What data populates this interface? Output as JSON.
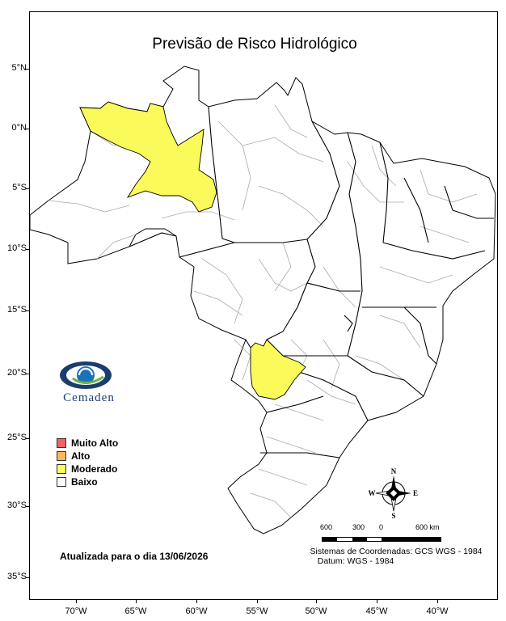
{
  "title": "Previsão de Risco Hidrológico",
  "axes": {
    "lat_labels": [
      "5°N",
      "0°N",
      "5°S",
      "10°S",
      "15°S",
      "20°S",
      "25°S",
      "30°S",
      "35°S"
    ],
    "lon_labels": [
      "70°W",
      "65°W",
      "60°W",
      "55°W",
      "50°W",
      "45°W",
      "40°W"
    ]
  },
  "logo": {
    "name": "Cemaden"
  },
  "legend": {
    "items": [
      {
        "label": "Muito Alto",
        "color": "#f26060"
      },
      {
        "label": "Alto",
        "color": "#f9b85b"
      },
      {
        "label": "Moderado",
        "color": "#fafa5a"
      },
      {
        "label": "Baixo",
        "color": "#ffffff"
      }
    ]
  },
  "updated": "Atualizada para o dia 13/06/2026",
  "scale": {
    "labels": [
      "600",
      "300",
      "0",
      "600 km"
    ]
  },
  "coordinates": {
    "system": "Sistemas de Coordenadas: GCS WGS - 1984",
    "datum": "Datum: WGS - 1984"
  },
  "compass": {
    "n": "N",
    "s": "S",
    "e": "E",
    "w": "W"
  },
  "colors": {
    "moderado_fill": "#fafa5a",
    "state_border": "#000000",
    "basin_border": "#aaaaaa"
  }
}
